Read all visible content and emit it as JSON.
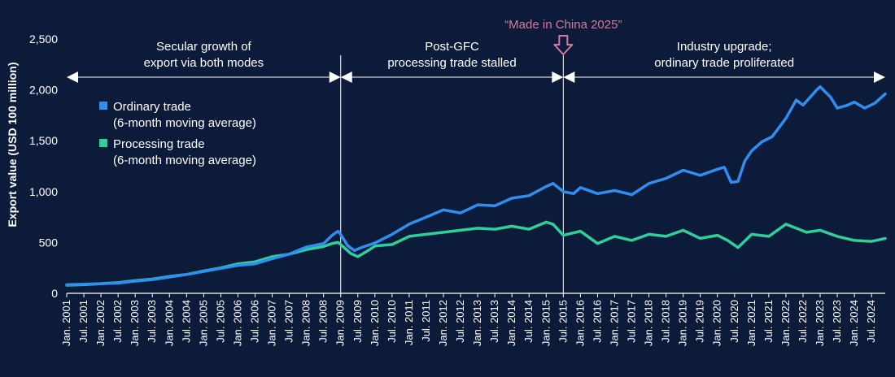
{
  "chart_data": {
    "type": "line",
    "ylabel": "Export value (USD 100 million)",
    "ylim": [
      0,
      2500
    ],
    "yticks": [
      0,
      500,
      1000,
      1500,
      2000,
      2500
    ],
    "ytick_labels": [
      "0",
      "500",
      "1,000",
      "1,500",
      "2,000",
      "2,500"
    ],
    "x_start": "Jan. 2001",
    "x_end": "Oct. 2024",
    "xtick_labels": [
      "Jan. 2001",
      "Jul. 2001",
      "Jan. 2002",
      "Jul. 2002",
      "Jan. 2003",
      "Jul. 2003",
      "Jan. 2004",
      "Jul. 2004",
      "Jan. 2005",
      "Jul. 2005",
      "Jan. 2006",
      "Jul. 2006",
      "Jan. 2007",
      "Jul. 2007",
      "Jan. 2008",
      "Jul. 2008",
      "Jan. 2009",
      "Jul. 2009",
      "Jan. 2010",
      "Jul. 2010",
      "Jan. 2011",
      "Jul. 2011",
      "Jan. 2012",
      "Jul. 2012",
      "Jan. 2013",
      "Jul. 2013",
      "Jan. 2014",
      "Jul. 2014",
      "Jan. 2015",
      "Jul. 2015",
      "Jan. 2016",
      "Jul. 2016",
      "Jan. 2017",
      "Jul. 2017",
      "Jan. 2018",
      "Jul. 2018",
      "Jan. 2019",
      "Jul. 2019",
      "Jan. 2020",
      "Jul. 2020",
      "Jan. 2021",
      "Jul. 2021",
      "Jan. 2022",
      "Jul. 2022",
      "Jan. 2023",
      "Jul. 2023",
      "Jan. 2024",
      "Jul. 2024"
    ],
    "series": [
      {
        "name": "Ordinary trade",
        "legend_line1": "Ordinary trade",
        "legend_line2": "(6-month moving average)",
        "color": "#2f8ef0",
        "points": [
          [
            2001.0,
            85
          ],
          [
            2001.5,
            90
          ],
          [
            2002.0,
            95
          ],
          [
            2002.5,
            100
          ],
          [
            2003.0,
            120
          ],
          [
            2003.5,
            135
          ],
          [
            2004.0,
            160
          ],
          [
            2004.5,
            185
          ],
          [
            2005.0,
            215
          ],
          [
            2005.5,
            245
          ],
          [
            2006.0,
            275
          ],
          [
            2006.5,
            290
          ],
          [
            2007.0,
            340
          ],
          [
            2007.5,
            385
          ],
          [
            2008.0,
            455
          ],
          [
            2008.5,
            490
          ],
          [
            2008.75,
            570
          ],
          [
            2008.92,
            610
          ],
          [
            2009.0,
            580
          ],
          [
            2009.2,
            470
          ],
          [
            2009.4,
            420
          ],
          [
            2009.6,
            450
          ],
          [
            2010.0,
            495
          ],
          [
            2010.5,
            580
          ],
          [
            2011.0,
            680
          ],
          [
            2011.5,
            750
          ],
          [
            2012.0,
            820
          ],
          [
            2012.5,
            790
          ],
          [
            2013.0,
            870
          ],
          [
            2013.5,
            860
          ],
          [
            2014.0,
            935
          ],
          [
            2014.5,
            960
          ],
          [
            2015.0,
            1050
          ],
          [
            2015.2,
            1080
          ],
          [
            2015.5,
            1000
          ],
          [
            2015.8,
            980
          ],
          [
            2016.0,
            1040
          ],
          [
            2016.5,
            980
          ],
          [
            2017.0,
            1010
          ],
          [
            2017.5,
            970
          ],
          [
            2018.0,
            1080
          ],
          [
            2018.5,
            1130
          ],
          [
            2019.0,
            1210
          ],
          [
            2019.5,
            1160
          ],
          [
            2020.0,
            1220
          ],
          [
            2020.2,
            1240
          ],
          [
            2020.4,
            1090
          ],
          [
            2020.6,
            1100
          ],
          [
            2020.8,
            1300
          ],
          [
            2021.0,
            1400
          ],
          [
            2021.3,
            1490
          ],
          [
            2021.6,
            1540
          ],
          [
            2022.0,
            1720
          ],
          [
            2022.3,
            1900
          ],
          [
            2022.5,
            1850
          ],
          [
            2022.9,
            2000
          ],
          [
            2023.0,
            2030
          ],
          [
            2023.3,
            1930
          ],
          [
            2023.5,
            1820
          ],
          [
            2023.8,
            1850
          ],
          [
            2024.0,
            1880
          ],
          [
            2024.3,
            1820
          ],
          [
            2024.6,
            1870
          ],
          [
            2024.9,
            1960
          ]
        ]
      },
      {
        "name": "Processing trade",
        "legend_line1": "Processing trade",
        "legend_line2": "(6-month moving average)",
        "color": "#2fcf9c",
        "points": [
          [
            2001.0,
            80
          ],
          [
            2001.5,
            85
          ],
          [
            2002.0,
            95
          ],
          [
            2002.5,
            105
          ],
          [
            2003.0,
            125
          ],
          [
            2003.5,
            140
          ],
          [
            2004.0,
            165
          ],
          [
            2004.5,
            185
          ],
          [
            2005.0,
            220
          ],
          [
            2005.5,
            250
          ],
          [
            2006.0,
            290
          ],
          [
            2006.5,
            310
          ],
          [
            2007.0,
            360
          ],
          [
            2007.5,
            385
          ],
          [
            2008.0,
            430
          ],
          [
            2008.5,
            460
          ],
          [
            2008.75,
            490
          ],
          [
            2008.92,
            500
          ],
          [
            2009.0,
            480
          ],
          [
            2009.3,
            390
          ],
          [
            2009.5,
            360
          ],
          [
            2009.8,
            420
          ],
          [
            2010.0,
            465
          ],
          [
            2010.5,
            480
          ],
          [
            2011.0,
            560
          ],
          [
            2011.5,
            580
          ],
          [
            2012.0,
            600
          ],
          [
            2012.5,
            620
          ],
          [
            2013.0,
            640
          ],
          [
            2013.5,
            630
          ],
          [
            2014.0,
            660
          ],
          [
            2014.5,
            630
          ],
          [
            2015.0,
            700
          ],
          [
            2015.2,
            680
          ],
          [
            2015.5,
            570
          ],
          [
            2016.0,
            610
          ],
          [
            2016.5,
            490
          ],
          [
            2017.0,
            560
          ],
          [
            2017.5,
            520
          ],
          [
            2018.0,
            580
          ],
          [
            2018.5,
            560
          ],
          [
            2019.0,
            620
          ],
          [
            2019.5,
            540
          ],
          [
            2020.0,
            570
          ],
          [
            2020.3,
            520
          ],
          [
            2020.6,
            450
          ],
          [
            2021.0,
            580
          ],
          [
            2021.5,
            560
          ],
          [
            2022.0,
            680
          ],
          [
            2022.3,
            640
          ],
          [
            2022.6,
            600
          ],
          [
            2023.0,
            620
          ],
          [
            2023.5,
            560
          ],
          [
            2024.0,
            520
          ],
          [
            2024.5,
            510
          ],
          [
            2024.9,
            540
          ]
        ]
      }
    ],
    "eras": [
      {
        "start": 2001.0,
        "end": 2009.0,
        "line1": "Secular growth of",
        "line2": "export via both modes"
      },
      {
        "start": 2009.0,
        "end": 2015.5,
        "line1": "Post-GFC",
        "line2": "processing trade stalled"
      },
      {
        "start": 2015.5,
        "end": 2024.9,
        "line1": "Industry upgrade;",
        "line2": "ordinary trade proliferated"
      }
    ],
    "event_label": "“Made in China 2025”",
    "event_at": 2015.5,
    "event_color": "#d9779e"
  }
}
